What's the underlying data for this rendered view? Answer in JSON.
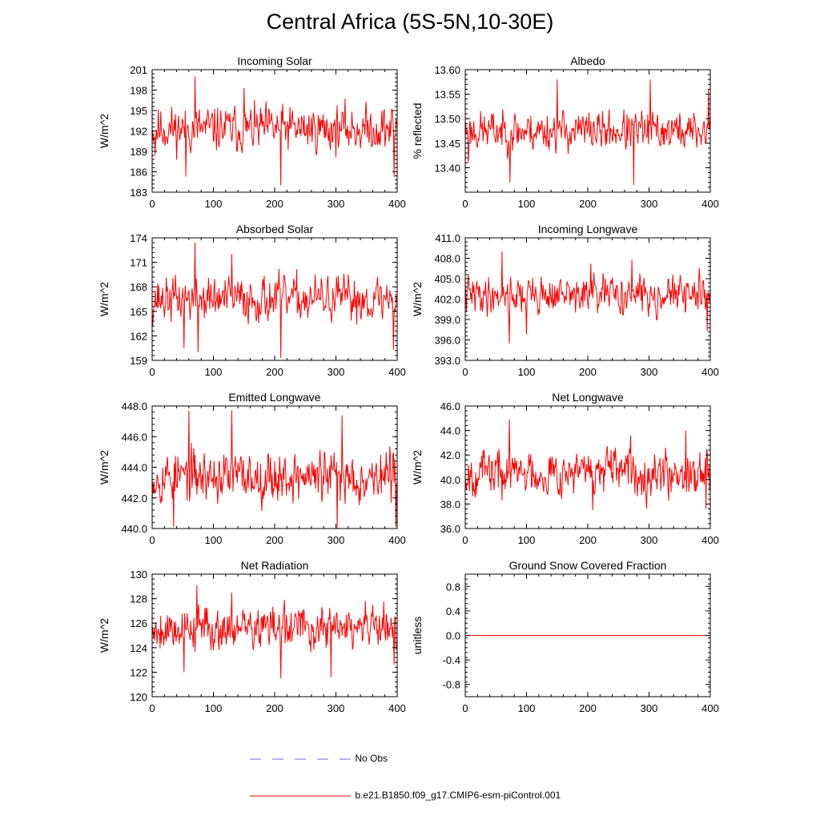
{
  "title": "Central Africa (5S-5N,10-30E)",
  "colors": {
    "series": "#ff0000",
    "obs": "#6a6ad8",
    "axis": "#000000"
  },
  "legend": {
    "obs_label": "No Obs",
    "model_label": "b.e21.B1850.f09_g17.CMIP6-esm-piControl.001"
  },
  "chart_data": [
    {
      "type": "line",
      "title": "Incoming Solar",
      "ylabel": "W/m^2",
      "xlim": [
        0,
        400
      ],
      "xticks": [
        0,
        100,
        200,
        300,
        400
      ],
      "ylim": [
        183,
        201
      ],
      "yticks": [
        183,
        186,
        189,
        192,
        195,
        198,
        201
      ],
      "ytick_labels": [
        "183",
        "186",
        "189",
        "192",
        "195",
        "198",
        "201"
      ],
      "series_name": "b.e21.B1850.f09_g17.CMIP6-esm-piControl.001",
      "n_points": 400,
      "mean": 192.3,
      "amplitude": 2.3,
      "spikes": [
        [
          70,
          200.0
        ],
        [
          210,
          184.0
        ],
        [
          55,
          185.3
        ],
        [
          395,
          185.2
        ],
        [
          150,
          198.3
        ],
        [
          5,
          188.5
        ]
      ],
      "seed": 11
    },
    {
      "type": "line",
      "title": "Albedo",
      "ylabel": "% reflected",
      "xlim": [
        0,
        400
      ],
      "xticks": [
        0,
        100,
        200,
        300,
        400
      ],
      "ylim": [
        13.35,
        13.6
      ],
      "yticks": [
        13.4,
        13.45,
        13.5,
        13.55,
        13.6
      ],
      "ytick_labels": [
        "13.40",
        "13.45",
        "13.50",
        "13.55",
        "13.60"
      ],
      "series_name": "b.e21.B1850.f09_g17.CMIP6-esm-piControl.001",
      "n_points": 400,
      "mean": 13.475,
      "amplitude": 0.028,
      "spikes": [
        [
          150,
          13.58
        ],
        [
          275,
          13.365
        ],
        [
          73,
          13.37
        ],
        [
          302,
          13.58
        ],
        [
          5,
          13.41
        ],
        [
          397,
          13.56
        ]
      ],
      "seed": 23
    },
    {
      "type": "line",
      "title": "Absorbed Solar",
      "ylabel": "W/m^2",
      "xlim": [
        0,
        400
      ],
      "xticks": [
        0,
        100,
        200,
        300,
        400
      ],
      "ylim": [
        159,
        174
      ],
      "yticks": [
        159,
        162,
        165,
        168,
        171,
        174
      ],
      "ytick_labels": [
        "159",
        "162",
        "165",
        "168",
        "171",
        "174"
      ],
      "series_name": "b.e21.B1850.f09_g17.CMIP6-esm-piControl.001",
      "n_points": 400,
      "mean": 166.5,
      "amplitude": 1.9,
      "spikes": [
        [
          70,
          173.4
        ],
        [
          210,
          159.3
        ],
        [
          52,
          160.5
        ],
        [
          394,
          160.3
        ],
        [
          130,
          172.0
        ],
        [
          75,
          160.0
        ]
      ],
      "seed": 37
    },
    {
      "type": "line",
      "title": "Incoming Longwave",
      "ylabel": "W/m^2",
      "xlim": [
        0,
        400
      ],
      "xticks": [
        0,
        100,
        200,
        300,
        400
      ],
      "ylim": [
        393,
        411
      ],
      "yticks": [
        393,
        396,
        399,
        402,
        405,
        408,
        411
      ],
      "ytick_labels": [
        "393.0",
        "396.0",
        "399.0",
        "402.0",
        "405.0",
        "408.0",
        "411.0"
      ],
      "series_name": "b.e21.B1850.f09_g17.CMIP6-esm-piControl.001",
      "n_points": 400,
      "mean": 402.6,
      "amplitude": 1.9,
      "spikes": [
        [
          60,
          409.0
        ],
        [
          72,
          395.5
        ],
        [
          100,
          396.8
        ],
        [
          395,
          397.3
        ],
        [
          272,
          407.8
        ],
        [
          205,
          407.2
        ]
      ],
      "seed": 41
    },
    {
      "type": "line",
      "title": "Emitted Longwave",
      "ylabel": "W/m^2",
      "xlim": [
        0,
        400
      ],
      "xticks": [
        0,
        100,
        200,
        300,
        400
      ],
      "ylim": [
        440,
        448
      ],
      "yticks": [
        440,
        442,
        444,
        446,
        448
      ],
      "ytick_labels": [
        "440.0",
        "442.0",
        "444.0",
        "446.0",
        "448.0"
      ],
      "series_name": "b.e21.B1850.f09_g17.CMIP6-esm-piControl.001",
      "n_points": 400,
      "mean": 443.4,
      "amplitude": 1.15,
      "spikes": [
        [
          60,
          447.7
        ],
        [
          130,
          447.7
        ],
        [
          302,
          440.0
        ],
        [
          398,
          440.1
        ],
        [
          310,
          447.4
        ],
        [
          35,
          440.1
        ]
      ],
      "seed": 53
    },
    {
      "type": "line",
      "title": "Net Longwave",
      "ylabel": "W/m^2",
      "xlim": [
        0,
        400
      ],
      "xticks": [
        0,
        100,
        200,
        300,
        400
      ],
      "ylim": [
        36,
        46
      ],
      "yticks": [
        36,
        38,
        40,
        42,
        44,
        46
      ],
      "ytick_labels": [
        "36.0",
        "38.0",
        "40.0",
        "42.0",
        "44.0",
        "46.0"
      ],
      "series_name": "b.e21.B1850.f09_g17.CMIP6-esm-piControl.001",
      "n_points": 400,
      "mean": 40.6,
      "amplitude": 1.25,
      "spikes": [
        [
          72,
          44.9
        ],
        [
          208,
          37.5
        ],
        [
          393,
          37.6
        ],
        [
          360,
          44.0
        ],
        [
          60,
          38.3
        ],
        [
          270,
          43.6
        ]
      ],
      "seed": 67
    },
    {
      "type": "line",
      "title": "Net Radiation",
      "ylabel": "W/m^2",
      "xlim": [
        0,
        400
      ],
      "xticks": [
        0,
        100,
        200,
        300,
        400
      ],
      "ylim": [
        120,
        130
      ],
      "yticks": [
        120,
        122,
        124,
        126,
        128,
        130
      ],
      "ytick_labels": [
        "120",
        "122",
        "124",
        "126",
        "128",
        "130"
      ],
      "series_name": "b.e21.B1850.f09_g17.CMIP6-esm-piControl.001",
      "n_points": 400,
      "mean": 125.6,
      "amplitude": 1.25,
      "spikes": [
        [
          73,
          129.1
        ],
        [
          210,
          121.5
        ],
        [
          292,
          121.6
        ],
        [
          52,
          122.0
        ],
        [
          395,
          122.6
        ],
        [
          130,
          128.5
        ]
      ],
      "seed": 79
    },
    {
      "type": "line",
      "title": "Ground Snow Covered Fraction",
      "ylabel": "unitless",
      "xlim": [
        0,
        400
      ],
      "xticks": [
        0,
        100,
        200,
        300,
        400
      ],
      "ylim": [
        -1.0,
        1.0
      ],
      "yticks": [
        -0.8,
        -0.4,
        0.0,
        0.4,
        0.8
      ],
      "ytick_labels": [
        "-0.8",
        "-0.4",
        "0.0",
        "0.4",
        "0.8"
      ],
      "series_name": "b.e21.B1850.f09_g17.CMIP6-esm-piControl.001",
      "n_points": 400,
      "mean": 0.0,
      "amplitude": 0.0,
      "spikes": [],
      "seed": 1
    }
  ]
}
